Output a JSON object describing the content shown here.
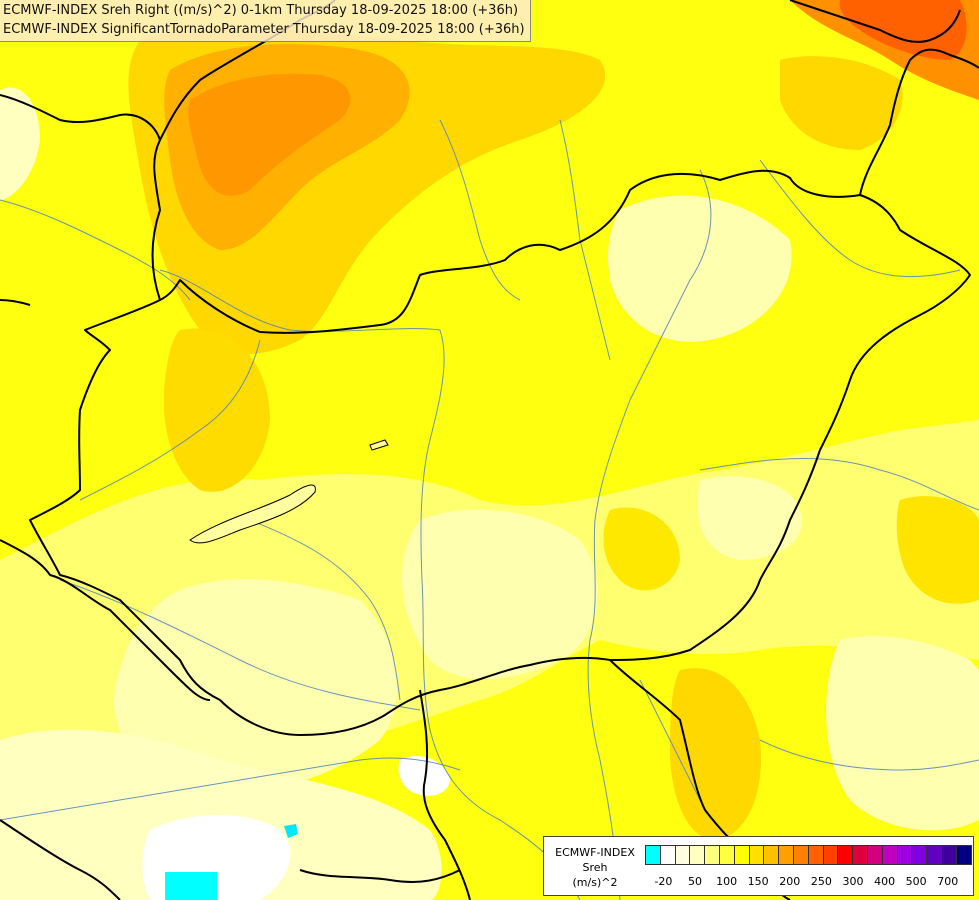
{
  "header": {
    "title_line1": "ECMWF-INDEX Sreh Right ((m/s)^2) 0-1km Thursday 18-09-2025 18:00 (+36h)",
    "title_line2": "ECMWF-INDEX SignificantTornadoParameter Thursday 18-09-2025 18:00 (+36h)"
  },
  "map": {
    "field_colors": {
      "low_cyan": "#00ffff",
      "white": "#ffffff",
      "pale_yellow": "#ffffc0",
      "light_yellow": "#ffff80",
      "yellow": "#ffff00",
      "gold": "#ffe000",
      "amber": "#ffc000",
      "orange": "#ffa000",
      "dark_orange": "#ff8000",
      "red_orange": "#ff5a00"
    },
    "border_color": "#000000",
    "river_color": "#5080c0"
  },
  "legend": {
    "title_line1": "ECMWF-INDEX",
    "title_line2": "Sreh",
    "title_line3": "(m/s)^2",
    "colors": [
      "#00ffff",
      "#ffffff",
      "#ffffe0",
      "#ffffc0",
      "#ffff80",
      "#ffff40",
      "#ffff00",
      "#ffe000",
      "#ffc000",
      "#ffa000",
      "#ff8000",
      "#ff6000",
      "#ff4000",
      "#ff0000",
      "#e00040",
      "#d00080",
      "#c000c0",
      "#a000e0",
      "#8000e0",
      "#6000c0",
      "#4000a0",
      "#000080"
    ],
    "tick_labels": [
      "-20",
      "50",
      "100",
      "150",
      "200",
      "250",
      "300",
      "400",
      "500",
      "700"
    ]
  }
}
